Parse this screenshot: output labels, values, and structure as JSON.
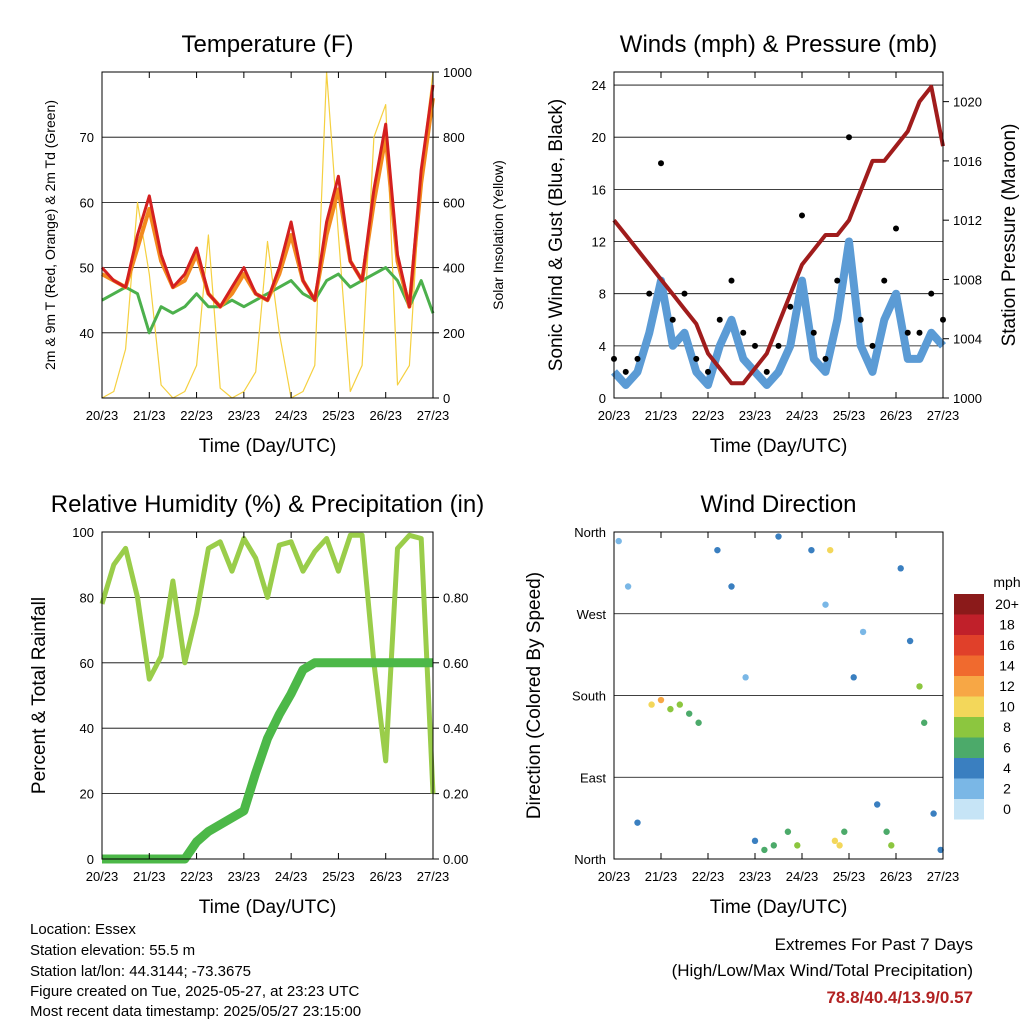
{
  "x_ticks": [
    "20/23",
    "21/23",
    "22/23",
    "23/23",
    "24/23",
    "25/23",
    "26/23",
    "27/23"
  ],
  "footer": {
    "location": "Location: Essex",
    "elevation": "Station elevation: 55.5 m",
    "latlon": "Station lat/lon: 44.3144; -73.3675",
    "created": "Figure created on Tue, 2025-05-27, at 23:23 UTC",
    "recent": "Most recent data timestamp: 2025/05/27 23:15:00"
  },
  "extremes": {
    "title": "Extremes For Past 7 Days",
    "subtitle": "(High/Low/Max Wind/Total Precipitation)",
    "values": "78.8/40.4/13.9/0.57",
    "color": "#b22222"
  },
  "colors": {
    "temp_red": "#d42020",
    "temp_orange": "#f28a1e",
    "dewpoint_green": "#4cb04c",
    "solar_yellow": "#f5d040",
    "wind_blue": "#5b9bd5",
    "gust_black": "#000000",
    "pressure_maroon": "#a01c1c",
    "rh_lightgreen": "#9acd4a",
    "precip_green": "#4cb848"
  },
  "chart_data": [
    {
      "type": "line",
      "title": "Temperature (F)",
      "xlabel": "Time (Day/UTC)",
      "ylabel": "2m & 9m T (Red, Orange) & 2m Td (Green)",
      "ylabel_right": "Solar Insolation (Yellow)",
      "x_ticks": [
        "20/23",
        "21/23",
        "22/23",
        "23/23",
        "24/23",
        "25/23",
        "26/23",
        "27/23"
      ],
      "ylim": [
        30,
        80
      ],
      "yticks": [
        40,
        50,
        60,
        70
      ],
      "ylim_right": [
        0,
        1000
      ],
      "yticks_right": [
        0,
        200,
        400,
        600,
        800,
        1000
      ],
      "x": [
        0,
        0.25,
        0.5,
        0.75,
        1,
        1.25,
        1.5,
        1.75,
        2,
        2.25,
        2.5,
        2.75,
        3,
        3.25,
        3.5,
        3.75,
        4,
        4.25,
        4.5,
        4.75,
        5,
        5.25,
        5.5,
        5.75,
        6,
        6.25,
        6.5,
        6.75,
        7
      ],
      "series": [
        {
          "values": [
            50,
            48,
            47,
            55,
            61,
            52,
            47,
            49,
            53,
            46,
            44,
            47,
            50,
            46,
            45,
            50,
            57,
            48,
            45,
            57,
            64,
            51,
            48,
            62,
            72,
            52,
            44,
            65,
            78
          ]
        },
        {
          "values": [
            49,
            48,
            47,
            53,
            59,
            51,
            47,
            48,
            52,
            46,
            44,
            46,
            49,
            46,
            45,
            49,
            55,
            48,
            45,
            55,
            62,
            51,
            48,
            60,
            70,
            51,
            44,
            63,
            76
          ]
        },
        {
          "values": [
            45,
            46,
            47,
            46,
            40,
            44,
            43,
            44,
            46,
            44,
            44,
            45,
            44,
            45,
            46,
            47,
            48,
            46,
            45,
            48,
            49,
            47,
            48,
            49,
            50,
            48,
            44,
            48,
            43
          ]
        },
        {
          "values": [
            0,
            20,
            150,
            600,
            380,
            40,
            0,
            20,
            100,
            500,
            30,
            0,
            20,
            80,
            480,
            200,
            0,
            20,
            100,
            1000,
            500,
            20,
            100,
            800,
            900,
            40,
            100,
            700,
            1000
          ]
        }
      ]
    },
    {
      "type": "scatter",
      "title": "Winds (mph) & Pressure (mb)",
      "xlabel": "Time (Day/UTC)",
      "ylabel": "Sonic Wind & Gust (Blue, Black)",
      "ylabel_right": "Station Pressure (Maroon)",
      "x_ticks": [
        "20/23",
        "21/23",
        "22/23",
        "23/23",
        "24/23",
        "25/23",
        "26/23",
        "27/23"
      ],
      "ylim": [
        0,
        25
      ],
      "yticks": [
        0,
        4,
        8,
        12,
        16,
        20,
        24
      ],
      "ylim_right": [
        1000,
        1022
      ],
      "yticks_right": [
        1000,
        1004,
        1008,
        1012,
        1016,
        1020
      ],
      "x": [
        0,
        0.25,
        0.5,
        0.75,
        1,
        1.25,
        1.5,
        1.75,
        2,
        2.25,
        2.5,
        2.75,
        3,
        3.25,
        3.5,
        3.75,
        4,
        4.25,
        4.5,
        4.75,
        5,
        5.25,
        5.5,
        5.75,
        6,
        6.25,
        6.5,
        6.75,
        7
      ],
      "series": [
        {
          "values": [
            2,
            1,
            2,
            5,
            9,
            4,
            5,
            2,
            1,
            4,
            6,
            3,
            2,
            1,
            2,
            4,
            9,
            3,
            2,
            6,
            12,
            4,
            2,
            6,
            8,
            3,
            3,
            5,
            4
          ]
        },
        {
          "values": [
            3,
            2,
            3,
            8,
            18,
            6,
            8,
            3,
            2,
            6,
            9,
            5,
            4,
            2,
            4,
            7,
            14,
            5,
            3,
            9,
            20,
            6,
            4,
            9,
            13,
            5,
            5,
            8,
            6
          ]
        },
        {
          "values": [
            1012,
            1011,
            1010,
            1009,
            1008,
            1007,
            1006,
            1005,
            1003,
            1002,
            1001,
            1001,
            1002,
            1003,
            1005,
            1007,
            1009,
            1010,
            1011,
            1011,
            1012,
            1014,
            1016,
            1016,
            1017,
            1018,
            1020,
            1021,
            1017
          ]
        }
      ]
    },
    {
      "type": "line",
      "title": "Relative Humidity (%) & Precipitation (in)",
      "xlabel": "Time (Day/UTC)",
      "ylabel": "Percent & Total Rainfall",
      "x_ticks": [
        "20/23",
        "21/23",
        "22/23",
        "23/23",
        "24/23",
        "25/23",
        "26/23",
        "27/23"
      ],
      "ylim": [
        0,
        100
      ],
      "yticks": [
        0,
        20,
        40,
        60,
        80,
        100
      ],
      "yticks_right": [
        "0.00",
        "0.20",
        "0.40",
        "0.60",
        "0.80"
      ],
      "x": [
        0,
        0.25,
        0.5,
        0.75,
        1,
        1.25,
        1.5,
        1.75,
        2,
        2.25,
        2.5,
        2.75,
        3,
        3.25,
        3.5,
        3.75,
        4,
        4.25,
        4.5,
        4.75,
        5,
        5.25,
        5.5,
        5.75,
        6,
        6.25,
        6.5,
        6.75,
        7
      ],
      "series": [
        {
          "values": [
            78,
            90,
            95,
            80,
            55,
            62,
            85,
            60,
            75,
            95,
            97,
            88,
            98,
            92,
            80,
            96,
            97,
            88,
            94,
            98,
            88,
            99,
            99,
            60,
            30,
            95,
            99,
            98,
            20
          ]
        },
        {
          "values": [
            0,
            0,
            0,
            0,
            0,
            0,
            0,
            0,
            0.05,
            0.08,
            0.1,
            0.12,
            0.14,
            0.25,
            0.35,
            0.42,
            0.48,
            0.55,
            0.57,
            0.57,
            0.57,
            0.57,
            0.57,
            0.57,
            0.57,
            0.57,
            0.57,
            0.57,
            0.57
          ]
        }
      ]
    },
    {
      "type": "scatter",
      "title": "Wind Direction",
      "xlabel": "Time (Day/UTC)",
      "ylabel": "Direction (Colored By Speed)",
      "x_ticks": [
        "20/23",
        "21/23",
        "22/23",
        "23/23",
        "24/23",
        "25/23",
        "26/23",
        "27/23"
      ],
      "y_categories": [
        "North",
        "East",
        "South",
        "West",
        "North"
      ],
      "ylim": [
        0,
        360
      ],
      "legend_title": "mph",
      "legend_labels": [
        "20+",
        "18",
        "16",
        "14",
        "12",
        "10",
        "8",
        "6",
        "4",
        "2",
        "0"
      ],
      "legend_colors": [
        "#8b1a1a",
        "#c0202a",
        "#e0402a",
        "#f06a2e",
        "#f7a745",
        "#f3d75a",
        "#8cc63f",
        "#4caa6a",
        "#3a7fc0",
        "#7ab7e6",
        "#c6e4f6"
      ],
      "points": [
        [
          0.1,
          350,
          2
        ],
        [
          0.3,
          300,
          2
        ],
        [
          0.5,
          40,
          3
        ],
        [
          0.8,
          170,
          9
        ],
        [
          1.0,
          175,
          11
        ],
        [
          1.2,
          165,
          8
        ],
        [
          1.4,
          170,
          7
        ],
        [
          1.6,
          160,
          5
        ],
        [
          1.8,
          150,
          5
        ],
        [
          2.2,
          340,
          3
        ],
        [
          2.5,
          300,
          3
        ],
        [
          2.8,
          200,
          2
        ],
        [
          3.0,
          20,
          4
        ],
        [
          3.2,
          10,
          5
        ],
        [
          3.4,
          15,
          6
        ],
        [
          3.5,
          355,
          4
        ],
        [
          3.7,
          30,
          5
        ],
        [
          3.9,
          15,
          7
        ],
        [
          4.2,
          340,
          3
        ],
        [
          4.5,
          280,
          2
        ],
        [
          4.6,
          340,
          10
        ],
        [
          4.7,
          20,
          9
        ],
        [
          4.8,
          15,
          10
        ],
        [
          4.9,
          30,
          6
        ],
        [
          5.1,
          200,
          3
        ],
        [
          5.3,
          250,
          2
        ],
        [
          5.6,
          60,
          4
        ],
        [
          5.8,
          30,
          6
        ],
        [
          5.9,
          15,
          7
        ],
        [
          6.1,
          320,
          3
        ],
        [
          6.3,
          240,
          4
        ],
        [
          6.5,
          190,
          8
        ],
        [
          6.6,
          150,
          5
        ],
        [
          6.8,
          50,
          3
        ],
        [
          6.95,
          10,
          3
        ]
      ]
    }
  ]
}
